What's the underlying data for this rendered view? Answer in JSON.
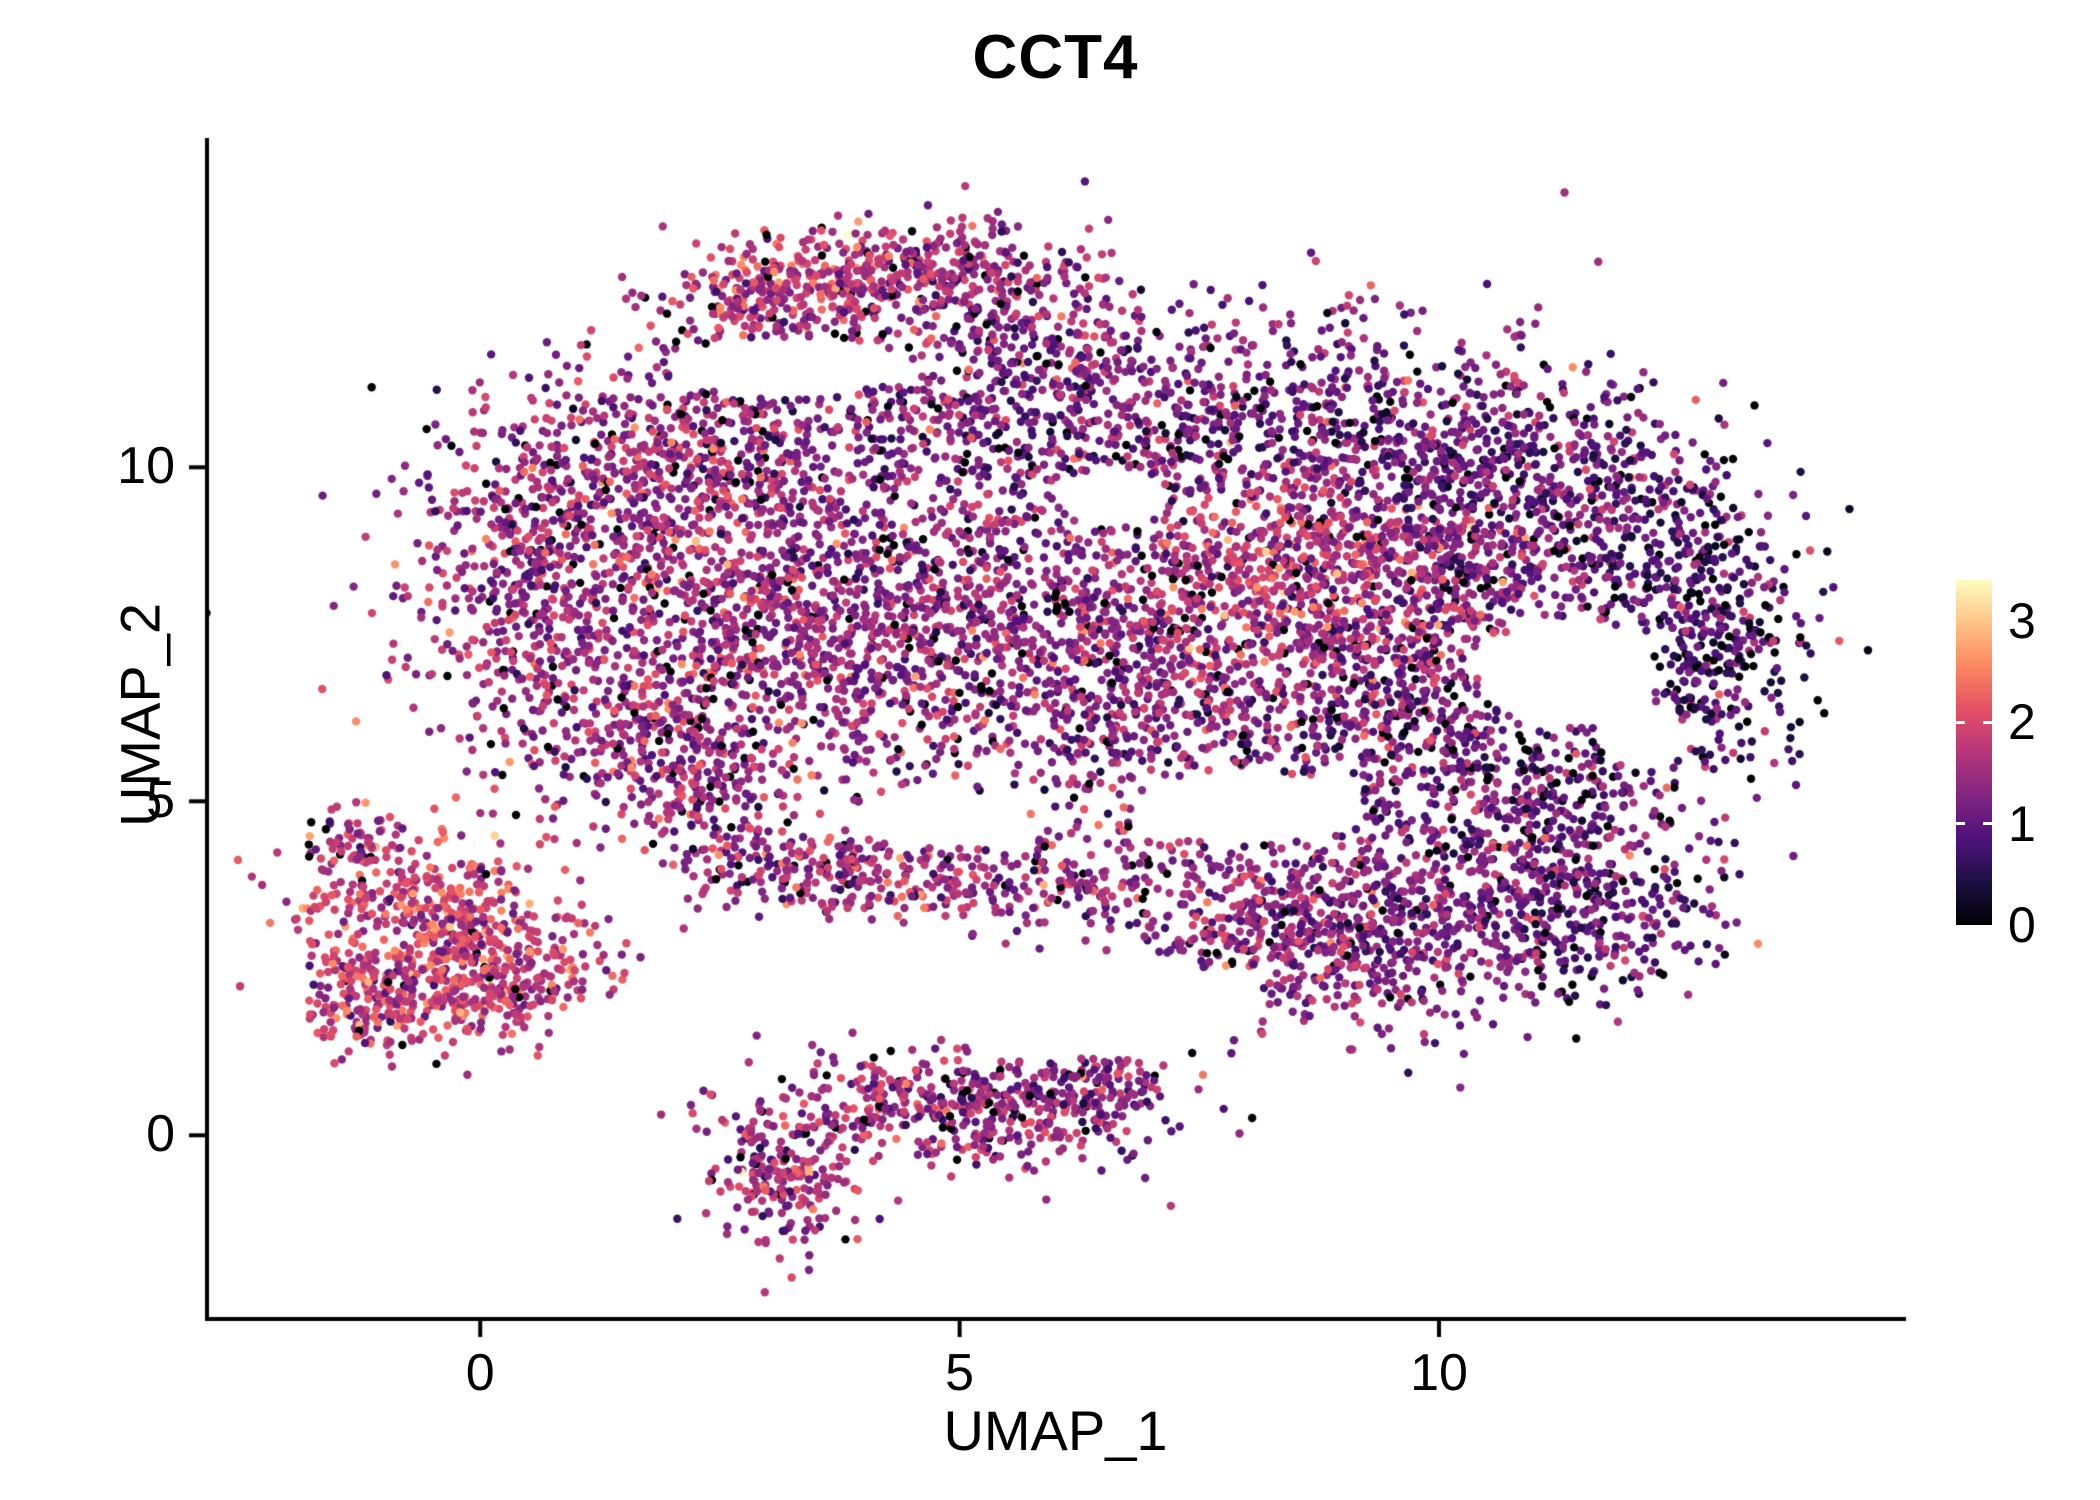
{
  "chart_data": {
    "type": "scatter",
    "title": "CCT4",
    "xlabel": "UMAP_1",
    "ylabel": "UMAP_2",
    "xlim": [
      -2.85,
      14.85
    ],
    "ylim": [
      -2.75,
      14.9
    ],
    "grid": false,
    "legend_position": "right",
    "point_radius": 4.2,
    "x_ticks": [
      {
        "value": 0,
        "label": "0"
      },
      {
        "value": 5,
        "label": "5"
      },
      {
        "value": 10,
        "label": "10"
      }
    ],
    "y_ticks": [
      {
        "value": 0,
        "label": "0"
      },
      {
        "value": 5,
        "label": "5"
      },
      {
        "value": 10,
        "label": "10"
      }
    ],
    "colorbar": {
      "ticks": [
        {
          "value": 0,
          "label": "0"
        },
        {
          "value": 1,
          "label": "1"
        },
        {
          "value": 2,
          "label": "2"
        },
        {
          "value": 3,
          "label": "3"
        }
      ],
      "tick_marks": [
        1,
        2
      ],
      "max_value": 3.4,
      "palette": [
        {
          "t": 0.0,
          "c": [
            0,
            0,
            4
          ]
        },
        {
          "t": 0.125,
          "c": [
            28,
            16,
            68
          ]
        },
        {
          "t": 0.25,
          "c": [
            79,
            18,
            123
          ]
        },
        {
          "t": 0.375,
          "c": [
            129,
            37,
            129
          ]
        },
        {
          "t": 0.5,
          "c": [
            181,
            54,
            122
          ]
        },
        {
          "t": 0.625,
          "c": [
            229,
            80,
            100
          ]
        },
        {
          "t": 0.75,
          "c": [
            251,
            135,
            97
          ]
        },
        {
          "t": 0.875,
          "c": [
            254,
            194,
            135
          ]
        },
        {
          "t": 1.0,
          "c": [
            252,
            253,
            191
          ]
        }
      ]
    },
    "seed": 42,
    "zero_fraction": 0.06,
    "value_sd": 0.45,
    "clusters": [
      {
        "cx": 3.3,
        "cy": 12.6,
        "sx": 0.75,
        "sy": 0.45,
        "n": 350,
        "mean": 1.7
      },
      {
        "cx": 4.9,
        "cy": 13.0,
        "sx": 0.75,
        "sy": 0.35,
        "n": 260,
        "mean": 1.5
      },
      {
        "cx": 5.6,
        "cy": 11.9,
        "sx": 0.6,
        "sy": 0.5,
        "n": 150,
        "mean": 1.3
      },
      {
        "cx": 5.4,
        "cy": 10.7,
        "sx": 1.4,
        "sy": 0.8,
        "n": 480,
        "mean": 1.2
      },
      {
        "cx": 8.2,
        "cy": 10.8,
        "sx": 1.4,
        "sy": 0.8,
        "n": 520,
        "mean": 1.2
      },
      {
        "cx": 10.6,
        "cy": 10.2,
        "sx": 1.0,
        "sy": 0.75,
        "n": 380,
        "mean": 1.1
      },
      {
        "cx": 12.0,
        "cy": 9.0,
        "sx": 0.8,
        "sy": 0.8,
        "n": 300,
        "mean": 1.0
      },
      {
        "cx": 12.9,
        "cy": 7.4,
        "sx": 0.45,
        "sy": 1.0,
        "n": 330,
        "mean": 0.8,
        "zf": 0.12
      },
      {
        "cx": 0.6,
        "cy": 8.3,
        "sx": 0.75,
        "sy": 1.15,
        "n": 460,
        "mean": 1.5
      },
      {
        "cx": 2.3,
        "cy": 8.8,
        "sx": 1.15,
        "sy": 1.2,
        "n": 700,
        "mean": 1.5
      },
      {
        "cx": 3.6,
        "cy": 7.2,
        "sx": 1.05,
        "sy": 1.0,
        "n": 520,
        "mean": 1.4
      },
      {
        "cx": 1.6,
        "cy": 6.2,
        "sx": 0.8,
        "sy": 0.7,
        "n": 280,
        "mean": 1.5
      },
      {
        "cx": 2.0,
        "cy": 10.4,
        "sx": 1.0,
        "sy": 0.6,
        "n": 300,
        "mean": 1.4
      },
      {
        "cx": 5.6,
        "cy": 7.9,
        "sx": 1.25,
        "sy": 1.2,
        "n": 680,
        "mean": 1.4
      },
      {
        "cx": 6.9,
        "cy": 6.4,
        "sx": 1.0,
        "sy": 0.9,
        "n": 400,
        "mean": 1.3
      },
      {
        "cx": 8.6,
        "cy": 8.2,
        "sx": 1.2,
        "sy": 1.0,
        "n": 880,
        "mean": 1.7
      },
      {
        "cx": 10.2,
        "cy": 8.7,
        "sx": 0.85,
        "sy": 0.7,
        "n": 340,
        "mean": 1.3
      },
      {
        "cx": 9.7,
        "cy": 6.3,
        "sx": 0.9,
        "sy": 0.9,
        "n": 380,
        "mean": 1.2
      },
      {
        "cx": 11.3,
        "cy": 5.3,
        "sx": 0.7,
        "sy": 0.9,
        "n": 280,
        "mean": 1.0,
        "zf": 0.1
      },
      {
        "cx": 3.4,
        "cy": 4.0,
        "sx": 0.9,
        "sy": 0.35,
        "n": 210,
        "mean": 1.5
      },
      {
        "cx": 5.7,
        "cy": 3.8,
        "sx": 1.2,
        "sy": 0.4,
        "n": 260,
        "mean": 1.5
      },
      {
        "cx": 2.4,
        "cy": 5.0,
        "sx": 0.5,
        "sy": 0.6,
        "n": 150,
        "mean": 1.5
      },
      {
        "cx": 10.3,
        "cy": 3.9,
        "sx": 1.0,
        "sy": 0.9,
        "n": 480,
        "mean": 1.2
      },
      {
        "cx": 9.2,
        "cy": 2.8,
        "sx": 0.95,
        "sy": 0.65,
        "n": 380,
        "mean": 1.3
      },
      {
        "cx": 11.7,
        "cy": 3.2,
        "sx": 0.6,
        "sy": 0.6,
        "n": 200,
        "mean": 1.0
      },
      {
        "cx": 8.1,
        "cy": 3.4,
        "sx": 0.7,
        "sy": 0.6,
        "n": 220,
        "mean": 1.4
      },
      {
        "cx": -0.55,
        "cy": 3.1,
        "sx": 0.7,
        "sy": 0.62,
        "n": 450,
        "mean": 1.9,
        "zf": 0.03
      },
      {
        "cx": 0.25,
        "cy": 2.4,
        "sx": 0.5,
        "sy": 0.5,
        "n": 240,
        "mean": 1.8,
        "zf": 0.03
      },
      {
        "cx": -0.95,
        "cy": 1.9,
        "sx": 0.45,
        "sy": 0.4,
        "n": 160,
        "mean": 1.8,
        "zf": 0.03
      },
      {
        "cx": -1.35,
        "cy": 4.35,
        "sx": 0.25,
        "sy": 0.3,
        "n": 60,
        "mean": 1.7
      },
      {
        "cx": 4.7,
        "cy": 0.4,
        "sx": 0.95,
        "sy": 0.42,
        "n": 340,
        "mean": 1.5
      },
      {
        "cx": 6.0,
        "cy": 0.45,
        "sx": 0.55,
        "sy": 0.4,
        "n": 160,
        "mean": 1.4
      },
      {
        "cx": 3.2,
        "cy": -0.55,
        "sx": 0.38,
        "sy": 0.55,
        "n": 210,
        "mean": 1.6
      },
      {
        "cx": 6.6,
        "cy": 1.0,
        "sx": 0.3,
        "sy": 0.35,
        "n": 70,
        "mean": 1.4
      },
      {
        "cx": 6.5,
        "cy": 8.0,
        "sx": 3.2,
        "sy": 2.3,
        "n": 260,
        "mean": 1.2,
        "zf": 0.1
      }
    ],
    "holes": [
      {
        "cx": 11.35,
        "cy": 6.9,
        "rx": 0.95,
        "ry": 0.8
      },
      {
        "cx": 6.6,
        "cy": 9.55,
        "rx": 0.6,
        "ry": 0.45
      },
      {
        "cx": 8.0,
        "cy": 4.9,
        "rx": 1.2,
        "ry": 0.55
      },
      {
        "cx": 4.7,
        "cy": 4.75,
        "rx": 0.9,
        "ry": 0.45
      },
      {
        "cx": 3.2,
        "cy": 11.5,
        "rx": 1.2,
        "ry": 0.45
      },
      {
        "cx": 6.3,
        "cy": 1.9,
        "rx": 1.9,
        "ry": 0.75
      },
      {
        "cx": 1.7,
        "cy": 3.7,
        "rx": 0.5,
        "ry": 0.4
      },
      {
        "cx": 12.1,
        "cy": 6.0,
        "rx": 0.45,
        "ry": 0.45
      },
      {
        "cx": 4.0,
        "cy": 2.6,
        "rx": 1.3,
        "ry": 0.6
      }
    ]
  },
  "colors": {
    "axis": "#000000",
    "background": "#ffffff",
    "text": "#000000"
  }
}
